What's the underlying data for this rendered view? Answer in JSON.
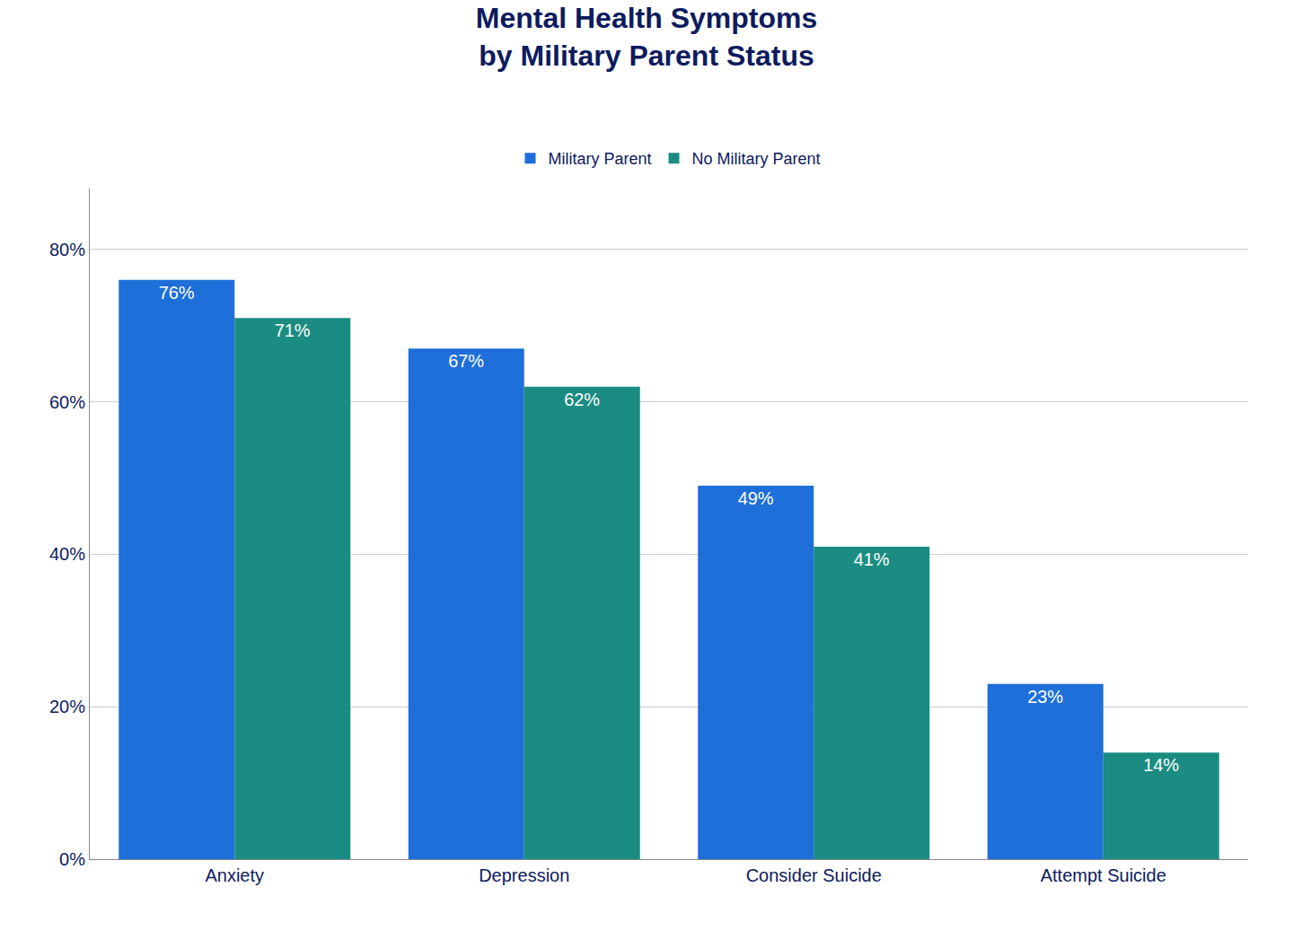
{
  "chart_data": {
    "type": "bar",
    "title": "Mental Health Symptoms\nby Military Parent Status",
    "categories": [
      "Anxiety",
      "Depression",
      "Consider Suicide",
      "Attempt Suicide"
    ],
    "series": [
      {
        "name": "Military Parent",
        "color": "#1E6FD9",
        "values": [
          76,
          67,
          49,
          23
        ],
        "value_labels": [
          "76%",
          "67%",
          "49%",
          "23%"
        ]
      },
      {
        "name": "No Military Parent",
        "color": "#1A8C82",
        "values": [
          71,
          62,
          41,
          14
        ],
        "value_labels": [
          "71%",
          "62%",
          "41%",
          "14%"
        ]
      }
    ],
    "ylim": [
      0,
      88
    ],
    "yticks": [
      {
        "value": 0,
        "label": "0%"
      },
      {
        "value": 20,
        "label": "20%"
      },
      {
        "value": 40,
        "label": "40%"
      },
      {
        "value": 60,
        "label": "60%"
      },
      {
        "value": 80,
        "label": "80%"
      }
    ],
    "grid": true,
    "data_labels": true,
    "legend": "top"
  }
}
